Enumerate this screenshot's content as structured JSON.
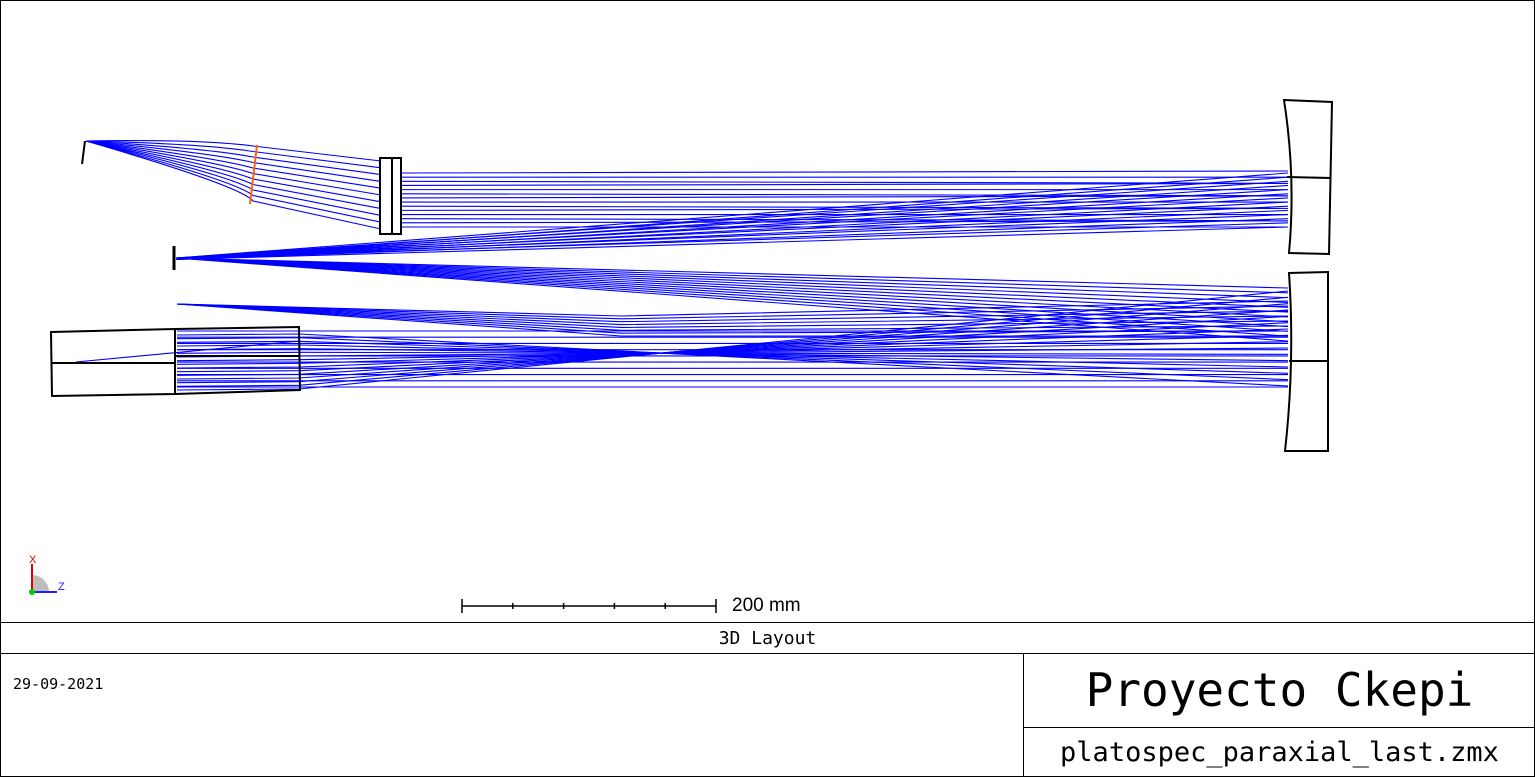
{
  "layout_title": "3D Layout",
  "date": "29-09-2021",
  "project_title": "Proyecto Ckepi",
  "file_name": "platospec_paraxial_last.zmx",
  "scale_bar": {
    "label": "200 mm",
    "ticks": 5
  },
  "axes": {
    "vertical": "X",
    "horizontal": "Z"
  },
  "colors": {
    "rays": "#0000ff",
    "components": "#000000",
    "fiber_marker": "#ff6600",
    "axis_x": "#e00000",
    "axis_z": "#2020ff",
    "axis_origin": "#00cc00"
  },
  "components": [
    "entrance-slit",
    "fiber-marker",
    "collimator-lens",
    "intermediate-focus",
    "camera-lens-barrel",
    "upper-mirror",
    "lower-mirror"
  ]
}
